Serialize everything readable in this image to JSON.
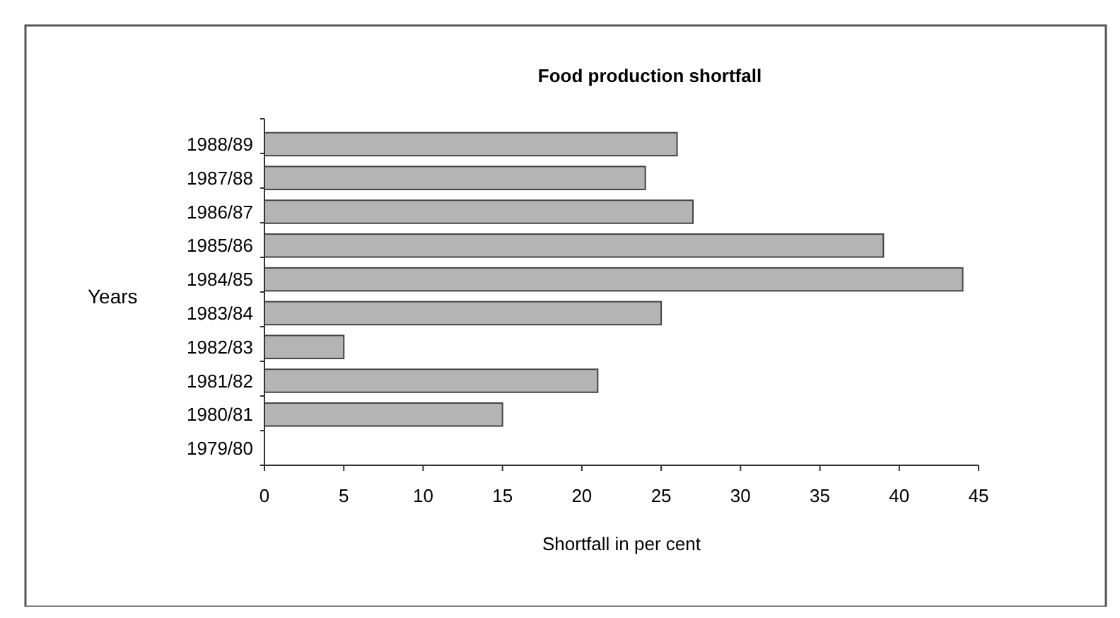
{
  "chart_data": {
    "type": "bar",
    "orientation": "horizontal",
    "title": "Food production shortfall",
    "xlabel": "Shortfall in per cent",
    "ylabel": "Years",
    "categories": [
      "1988/89",
      "1987/88",
      "1986/87",
      "1985/86",
      "1984/85",
      "1983/84",
      "1982/83",
      "1981/82",
      "1980/81",
      "1979/80"
    ],
    "values": [
      26,
      24,
      27,
      39,
      44,
      25,
      5,
      21,
      15,
      null
    ],
    "color": "#b4b4b4",
    "xlim": [
      0,
      45
    ],
    "xticks": [
      0,
      5,
      10,
      15,
      20,
      25,
      30,
      35,
      40,
      45
    ],
    "grid": false
  }
}
